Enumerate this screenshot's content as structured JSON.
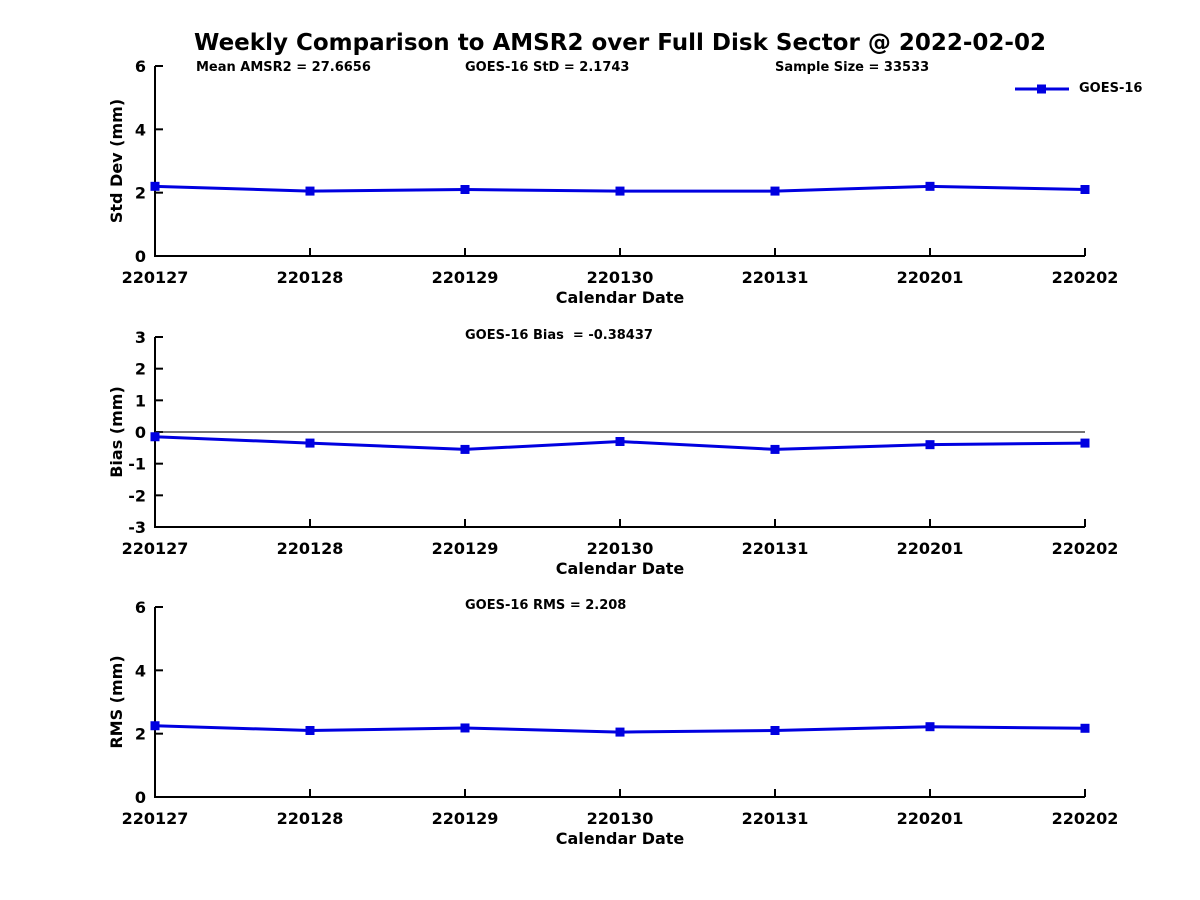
{
  "figure": {
    "title": "Weekly Comparison to AMSR2 over Full Disk Sector @ 2022-02-02",
    "legend_label": "GOES-16",
    "line_color": "#0000E0",
    "axis_color": "#000000"
  },
  "chart_data": [
    {
      "type": "line",
      "annotations": [
        "Mean AMSR2 = 27.6656",
        "GOES-16 StD = 2.1743",
        "Sample Size = 33533"
      ],
      "categories": [
        "220127",
        "220128",
        "220129",
        "220130",
        "220131",
        "220201",
        "220202"
      ],
      "series": [
        {
          "name": "GOES-16",
          "values": [
            2.2,
            2.05,
            2.1,
            2.05,
            2.05,
            2.2,
            2.1
          ]
        }
      ],
      "xlabel": "Calendar Date",
      "ylabel": "Std Dev (mm)",
      "ylim": [
        0,
        6
      ],
      "yticks": [
        0,
        2,
        4,
        6
      ],
      "zero_line": false,
      "legend_position": "top-right",
      "grid": false
    },
    {
      "type": "line",
      "annotations": [
        "GOES-16 Bias  = -0.38437"
      ],
      "categories": [
        "220127",
        "220128",
        "220129",
        "220130",
        "220131",
        "220201",
        "220202"
      ],
      "series": [
        {
          "name": "GOES-16",
          "values": [
            -0.15,
            -0.35,
            -0.55,
            -0.3,
            -0.55,
            -0.4,
            -0.35
          ]
        }
      ],
      "xlabel": "Calendar Date",
      "ylabel": "Bias (mm)",
      "ylim": [
        -3,
        3
      ],
      "yticks": [
        -3,
        -2,
        -1,
        0,
        1,
        2,
        3
      ],
      "zero_line": true,
      "grid": false
    },
    {
      "type": "line",
      "annotations": [
        "GOES-16 RMS = 2.208"
      ],
      "categories": [
        "220127",
        "220128",
        "220129",
        "220130",
        "220131",
        "220201",
        "220202"
      ],
      "series": [
        {
          "name": "GOES-16",
          "values": [
            2.25,
            2.1,
            2.18,
            2.05,
            2.1,
            2.22,
            2.17
          ]
        }
      ],
      "xlabel": "Calendar Date",
      "ylabel": "RMS (mm)",
      "ylim": [
        0,
        6
      ],
      "yticks": [
        0,
        2,
        4,
        6
      ],
      "zero_line": false,
      "grid": false
    }
  ]
}
